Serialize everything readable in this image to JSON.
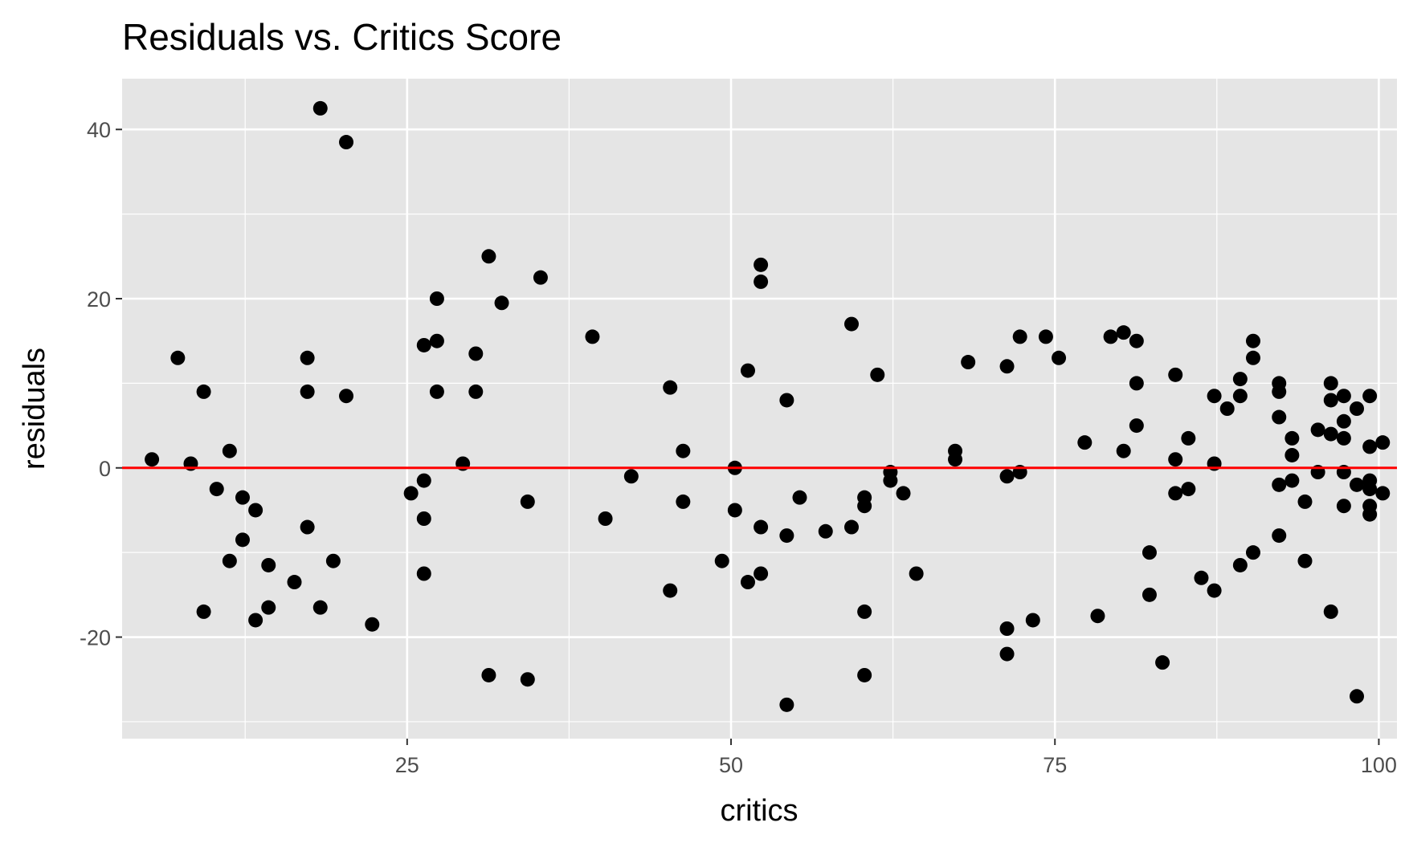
{
  "chart_data": {
    "type": "scatter",
    "title": "Residuals vs. Critics Score",
    "xlabel": "critics",
    "ylabel": "residuals",
    "xlim": [
      3.0,
      101.4
    ],
    "ylim": [
      -32.0,
      46.0
    ],
    "x_ticks": [
      25,
      50,
      75,
      100
    ],
    "y_ticks": [
      -20,
      0,
      20,
      40
    ],
    "x_tick_labels": [
      "25",
      "50",
      "75",
      "100"
    ],
    "y_tick_labels": [
      "-20",
      "0",
      "20",
      "40"
    ],
    "grid": true,
    "legend": "none",
    "colors": {
      "panel_background": "#e5e5e5",
      "grid": "#ffffff",
      "points": "#000000",
      "reference_line": "#ff0000",
      "tick_text": "#4d4d4d"
    },
    "reference_line": {
      "y": 0
    },
    "points": [
      [
        5.3,
        1.0
      ],
      [
        7.3,
        13.0
      ],
      [
        8.3,
        0.5
      ],
      [
        9.3,
        9.0
      ],
      [
        9.3,
        -17.0
      ],
      [
        10.3,
        -2.5
      ],
      [
        11.3,
        -11.0
      ],
      [
        11.3,
        2.0
      ],
      [
        12.3,
        -3.5
      ],
      [
        12.3,
        -8.5
      ],
      [
        13.3,
        -5.0
      ],
      [
        13.3,
        -18.0
      ],
      [
        14.3,
        -11.5
      ],
      [
        14.3,
        -16.5
      ],
      [
        16.3,
        -13.5
      ],
      [
        17.3,
        13.0
      ],
      [
        17.3,
        9.0
      ],
      [
        17.3,
        -7.0
      ],
      [
        18.3,
        42.5
      ],
      [
        18.3,
        -16.5
      ],
      [
        19.3,
        -11.0
      ],
      [
        20.3,
        38.5
      ],
      [
        20.3,
        8.5
      ],
      [
        22.3,
        -18.5
      ],
      [
        25.3,
        -3.0
      ],
      [
        26.3,
        14.5
      ],
      [
        26.3,
        -1.5
      ],
      [
        26.3,
        -6.0
      ],
      [
        26.3,
        -12.5
      ],
      [
        27.3,
        15.0
      ],
      [
        27.3,
        20.0
      ],
      [
        27.3,
        9.0
      ],
      [
        29.3,
        0.5
      ],
      [
        30.3,
        13.5
      ],
      [
        30.3,
        9.0
      ],
      [
        31.3,
        25.0
      ],
      [
        31.3,
        -24.5
      ],
      [
        32.3,
        19.5
      ],
      [
        34.3,
        -4.0
      ],
      [
        34.3,
        -25.0
      ],
      [
        35.3,
        22.5
      ],
      [
        39.3,
        15.5
      ],
      [
        40.3,
        -6.0
      ],
      [
        42.3,
        -1.0
      ],
      [
        45.3,
        9.5
      ],
      [
        45.3,
        -14.5
      ],
      [
        46.3,
        2.0
      ],
      [
        46.3,
        -4.0
      ],
      [
        49.3,
        -11.0
      ],
      [
        50.3,
        0.0
      ],
      [
        50.3,
        -5.0
      ],
      [
        51.3,
        11.5
      ],
      [
        51.3,
        -13.5
      ],
      [
        52.3,
        24.0
      ],
      [
        52.3,
        22.0
      ],
      [
        52.3,
        -7.0
      ],
      [
        52.3,
        -12.5
      ],
      [
        54.3,
        8.0
      ],
      [
        54.3,
        -8.0
      ],
      [
        54.3,
        -28.0
      ],
      [
        55.3,
        -3.5
      ],
      [
        57.3,
        -7.5
      ],
      [
        59.3,
        17.0
      ],
      [
        59.3,
        -7.0
      ],
      [
        60.3,
        -3.5
      ],
      [
        60.3,
        -4.5
      ],
      [
        60.3,
        -17.0
      ],
      [
        60.3,
        -24.5
      ],
      [
        61.3,
        11.0
      ],
      [
        62.3,
        -0.5
      ],
      [
        62.3,
        -1.5
      ],
      [
        63.3,
        -3.0
      ],
      [
        64.3,
        -12.5
      ],
      [
        67.3,
        2.0
      ],
      [
        67.3,
        1.0
      ],
      [
        68.3,
        12.5
      ],
      [
        71.3,
        12.0
      ],
      [
        71.3,
        -1.0
      ],
      [
        71.3,
        -19.0
      ],
      [
        71.3,
        -22.0
      ],
      [
        72.3,
        15.5
      ],
      [
        72.3,
        -0.5
      ],
      [
        73.3,
        -18.0
      ],
      [
        74.3,
        15.5
      ],
      [
        75.3,
        13.0
      ],
      [
        77.3,
        3.0
      ],
      [
        78.3,
        -17.5
      ],
      [
        79.3,
        15.5
      ],
      [
        80.3,
        16.0
      ],
      [
        80.3,
        2.0
      ],
      [
        81.3,
        15.0
      ],
      [
        81.3,
        10.0
      ],
      [
        81.3,
        5.0
      ],
      [
        82.3,
        -10.0
      ],
      [
        82.3,
        -15.0
      ],
      [
        83.3,
        -23.0
      ],
      [
        84.3,
        11.0
      ],
      [
        84.3,
        1.0
      ],
      [
        84.3,
        -3.0
      ],
      [
        85.3,
        3.5
      ],
      [
        85.3,
        -2.5
      ],
      [
        86.3,
        -13.0
      ],
      [
        87.3,
        8.5
      ],
      [
        87.3,
        0.5
      ],
      [
        87.3,
        -14.5
      ],
      [
        88.3,
        7.0
      ],
      [
        89.3,
        10.5
      ],
      [
        89.3,
        8.5
      ],
      [
        89.3,
        -11.5
      ],
      [
        90.3,
        15.0
      ],
      [
        90.3,
        13.0
      ],
      [
        90.3,
        -10.0
      ],
      [
        92.3,
        10.0
      ],
      [
        92.3,
        9.0
      ],
      [
        92.3,
        6.0
      ],
      [
        92.3,
        -2.0
      ],
      [
        92.3,
        -8.0
      ],
      [
        93.3,
        3.5
      ],
      [
        93.3,
        1.5
      ],
      [
        93.3,
        -1.5
      ],
      [
        94.3,
        -4.0
      ],
      [
        94.3,
        -11.0
      ],
      [
        95.3,
        4.5
      ],
      [
        95.3,
        -0.5
      ],
      [
        96.3,
        10.0
      ],
      [
        96.3,
        8.0
      ],
      [
        96.3,
        4.0
      ],
      [
        96.3,
        -17.0
      ],
      [
        97.3,
        8.5
      ],
      [
        97.3,
        5.5
      ],
      [
        97.3,
        3.5
      ],
      [
        97.3,
        -0.5
      ],
      [
        97.3,
        -4.5
      ],
      [
        98.3,
        7.0
      ],
      [
        98.3,
        -2.0
      ],
      [
        98.3,
        -27.0
      ],
      [
        99.3,
        8.5
      ],
      [
        99.3,
        2.5
      ],
      [
        99.3,
        -1.5
      ],
      [
        99.3,
        -2.5
      ],
      [
        99.3,
        -4.5
      ],
      [
        99.3,
        -5.5
      ],
      [
        100.3,
        3.0
      ],
      [
        100.3,
        -3.0
      ]
    ]
  }
}
